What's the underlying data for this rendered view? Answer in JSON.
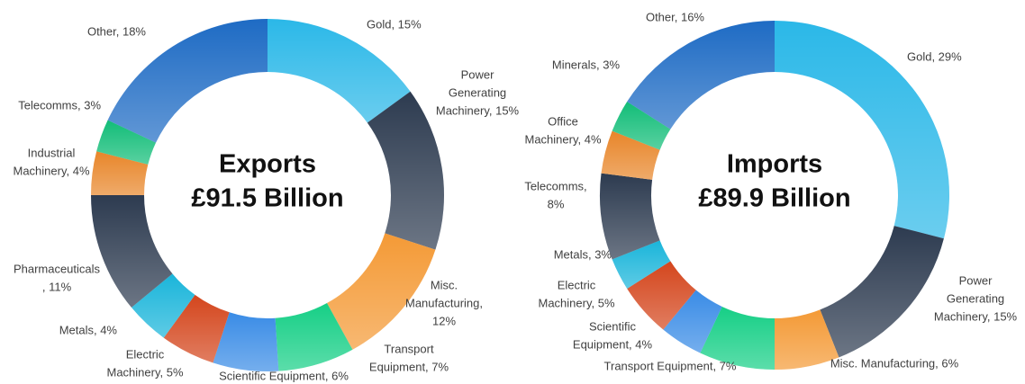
{
  "chart_data": [
    {
      "type": "pie",
      "title": "Exports",
      "subtitle": "£91.5 Billion",
      "values": [
        15,
        15,
        12,
        7,
        6,
        5,
        4,
        11,
        4,
        3,
        18
      ],
      "value_labels": [
        [
          "Gold, 15%"
        ],
        [
          "Power",
          "Generating",
          "Machinery, 15%"
        ],
        [
          "Misc.",
          "Manufacturing,",
          "12%"
        ],
        [
          "Transport",
          "Equipment, 7%"
        ],
        [
          "Scientific Equipment, 6%"
        ],
        [
          "Electric",
          "Machinery, 5%"
        ],
        [
          "Metals, 4%"
        ],
        [
          "Pharmaceuticals",
          ", 11%"
        ],
        [
          "Industrial",
          "Machinery, 4%"
        ],
        [
          "Telecomms, 3%"
        ],
        [
          "Other, 18%"
        ]
      ],
      "colors": [
        "#2bb8e8",
        "#2d3b50",
        "#f49a36",
        "#16cf86",
        "#3a8ce6",
        "#d4461d",
        "#1ab5da",
        "#2d3b50",
        "#e8862a",
        "#12bd78",
        "#1e6bc4"
      ]
    },
    {
      "type": "pie",
      "title": "Imports",
      "subtitle": "£89.9 Billion",
      "values": [
        29,
        15,
        6,
        7,
        4,
        5,
        3,
        8,
        4,
        3,
        16
      ],
      "value_labels": [
        [
          "Gold, 29%"
        ],
        [
          "Power",
          "Generating",
          "Machinery, 15%"
        ],
        [
          "Misc. Manufacturing, 6%"
        ],
        [
          "Transport Equipment, 7%"
        ],
        [
          "Scientific",
          "Equipment, 4%"
        ],
        [
          "Electric",
          "Machinery, 5%"
        ],
        [
          "Metals, 3%"
        ],
        [
          "Telecomms,",
          "8%"
        ],
        [
          "Office",
          "Machinery, 4%"
        ],
        [
          "Minerals, 3%"
        ],
        [
          "Other, 16%"
        ]
      ],
      "colors": [
        "#2bb8e8",
        "#2d3b50",
        "#f49a36",
        "#16cf86",
        "#3a8ce6",
        "#d4461d",
        "#1ab5da",
        "#2d3b50",
        "#e8862a",
        "#12bd78",
        "#1e6bc4"
      ]
    }
  ]
}
